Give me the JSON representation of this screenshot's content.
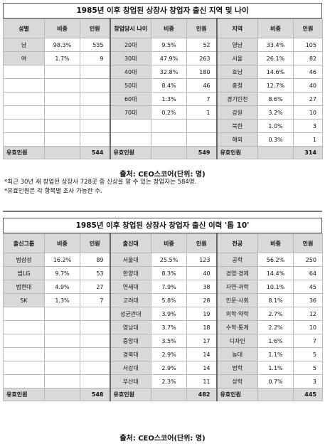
{
  "table1": {
    "title": "1985년 이후 창업된 상장사 창업자 출신 지역 및 나이",
    "gender": {
      "headers": [
        "성별",
        "비중",
        "인원"
      ],
      "rows": [
        [
          "남",
          "98.3%",
          "535"
        ],
        [
          "여",
          "1.7%",
          "9"
        ]
      ],
      "total_label": "유효인원",
      "total": "544"
    },
    "age": {
      "headers": [
        "창업당시 나이",
        "비중",
        "인원"
      ],
      "rows": [
        [
          "20대",
          "9.5%",
          "52"
        ],
        [
          "30대",
          "47.9%",
          "263"
        ],
        [
          "40대",
          "32.8%",
          "180"
        ],
        [
          "50대",
          "8.4%",
          "46"
        ],
        [
          "60대",
          "1.3%",
          "7"
        ],
        [
          "70대",
          "0.2%",
          "1"
        ]
      ],
      "total_label": "유효인원",
      "total": "549"
    },
    "region": {
      "headers": [
        "지역",
        "비중",
        "인원"
      ],
      "rows": [
        [
          "영남",
          "33.4%",
          "105"
        ],
        [
          "서울",
          "26.1%",
          "82"
        ],
        [
          "호남",
          "14.6%",
          "46"
        ],
        [
          "충청",
          "12.7%",
          "40"
        ],
        [
          "경기인천",
          "8.6%",
          "27"
        ],
        [
          "강원",
          "3.2%",
          "10"
        ],
        [
          "북한",
          "1.0%",
          "3"
        ],
        [
          "해외",
          "0.3%",
          "1"
        ]
      ],
      "total_label": "유효인원",
      "total": "314"
    },
    "source": "출처: CEO스코어(단위: 명)",
    "notes": [
      "*최근 30년 새 창업된 상장사 728곳 중 신상을 알 수 있는 창업자는 584명.",
      "*유효인원은 각 항목별 조사 가능한 수."
    ]
  },
  "table2": {
    "title": "1985년 이후 창업된 상장사 창업자 출신 이력 '톱 10'",
    "group": {
      "headers": [
        "출신그룹",
        "비중",
        "인원"
      ],
      "rows": [
        [
          "범삼성",
          "16.2%",
          "89"
        ],
        [
          "범LG",
          "9.7%",
          "53"
        ],
        [
          "범현대",
          "4.9%",
          "27"
        ],
        [
          "SK",
          "1.3%",
          "7"
        ]
      ],
      "total_label": "유효인원",
      "total": "548"
    },
    "university": {
      "headers": [
        "출신대",
        "비중",
        "인원"
      ],
      "rows": [
        [
          "서울대",
          "25.5%",
          "123"
        ],
        [
          "한양대",
          "8.3%",
          "40"
        ],
        [
          "연세대",
          "7.9%",
          "38"
        ],
        [
          "고려대",
          "5.8%",
          "28"
        ],
        [
          "성균관대",
          "3.9%",
          "19"
        ],
        [
          "영남대",
          "3.7%",
          "18"
        ],
        [
          "중앙대",
          "3.5%",
          "17"
        ],
        [
          "경북대",
          "2.9%",
          "14"
        ],
        [
          "서강대",
          "2.9%",
          "14"
        ],
        [
          "부산대",
          "2.3%",
          "11"
        ]
      ],
      "total_label": "유효인원",
      "total": "482"
    },
    "major": {
      "headers": [
        "전공",
        "비중",
        "인원"
      ],
      "rows": [
        [
          "공학",
          "56.2%",
          "250"
        ],
        [
          "경영·경제",
          "14.4%",
          "64"
        ],
        [
          "자연·과학",
          "10.1%",
          "45"
        ],
        [
          "인문·사회",
          "8.1%",
          "36"
        ],
        [
          "의학·약학",
          "2.7%",
          "12"
        ],
        [
          "수학·통계",
          "2.2%",
          "10"
        ],
        [
          "디자인",
          "1.6%",
          "7"
        ],
        [
          "농대",
          "1.1%",
          "5"
        ],
        [
          "법학",
          "1.1%",
          "5"
        ],
        [
          "상학",
          "0.7%",
          "3"
        ]
      ],
      "total_label": "유효인원",
      "total": "445"
    },
    "source": "출처: CEO스코어(단위: 명)"
  }
}
